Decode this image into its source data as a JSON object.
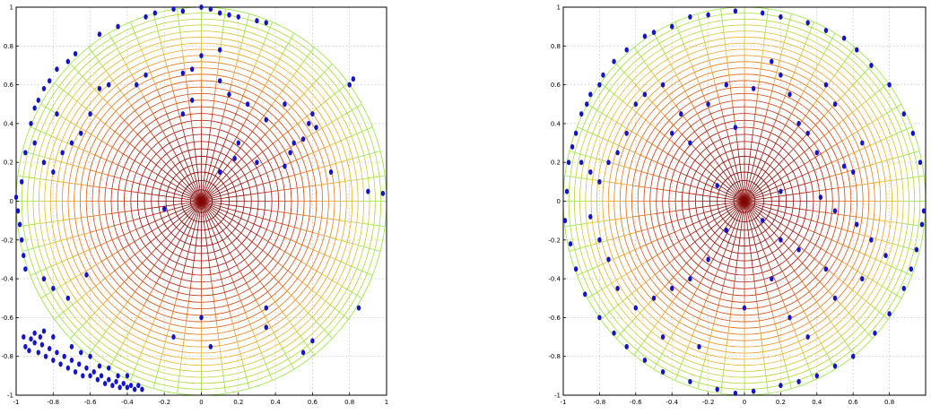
{
  "chart_data": [
    {
      "type": "scatter",
      "title": "",
      "xlabel": "",
      "ylabel": "",
      "xlim": [
        -1,
        1
      ],
      "ylim": [
        -1,
        1
      ],
      "xticks": [
        -1,
        -0.8,
        -0.6,
        -0.4,
        -0.2,
        0,
        0.2,
        0.4,
        0.6,
        0.8,
        1
      ],
      "yticks": [
        -1,
        -0.8,
        -0.6,
        -0.4,
        -0.2,
        0,
        0.2,
        0.4,
        0.6,
        0.8,
        1
      ],
      "xtick_labels": [
        "-1",
        "-0.8",
        "-0.6",
        "-0.4",
        "-0.2",
        "0",
        "0.2",
        "0.4",
        "0.6",
        "0.8",
        "1"
      ],
      "ytick_labels": [
        "-1",
        "-0.8",
        "-0.6",
        "-0.4",
        "-0.2",
        "0",
        "0.2",
        "0.4",
        "0.6",
        "0.8",
        "1"
      ],
      "grid": true,
      "polar_mesh": {
        "rings": 28,
        "spokes": 48,
        "colormap": "dark-red center to yellow-green rim"
      },
      "point_color": "#1414c8",
      "points": [
        [
          -0.95,
          -0.75
        ],
        [
          -0.93,
          -0.77
        ],
        [
          -0.9,
          -0.73
        ],
        [
          -0.88,
          -0.78
        ],
        [
          -0.86,
          -0.74
        ],
        [
          -0.84,
          -0.8
        ],
        [
          -0.82,
          -0.76
        ],
        [
          -0.8,
          -0.82
        ],
        [
          -0.78,
          -0.78
        ],
        [
          -0.76,
          -0.84
        ],
        [
          -0.74,
          -0.8
        ],
        [
          -0.72,
          -0.86
        ],
        [
          -0.7,
          -0.82
        ],
        [
          -0.68,
          -0.88
        ],
        [
          -0.66,
          -0.84
        ],
        [
          -0.64,
          -0.9
        ],
        [
          -0.62,
          -0.86
        ],
        [
          -0.6,
          -0.9
        ],
        [
          -0.58,
          -0.88
        ],
        [
          -0.56,
          -0.92
        ],
        [
          -0.54,
          -0.9
        ],
        [
          -0.52,
          -0.94
        ],
        [
          -0.5,
          -0.92
        ],
        [
          -0.48,
          -0.95
        ],
        [
          -0.46,
          -0.93
        ],
        [
          -0.44,
          -0.96
        ],
        [
          -0.42,
          -0.94
        ],
        [
          -0.4,
          -0.96
        ],
        [
          -0.38,
          -0.95
        ],
        [
          -0.36,
          -0.97
        ],
        [
          -0.34,
          -0.95
        ],
        [
          -0.32,
          -0.97
        ],
        [
          -0.96,
          -0.7
        ],
        [
          -0.92,
          -0.71
        ],
        [
          -0.9,
          -0.68
        ],
        [
          -0.87,
          -0.7
        ],
        [
          -0.85,
          -0.67
        ],
        [
          -0.8,
          -0.7
        ],
        [
          -0.7,
          -0.75
        ],
        [
          -0.65,
          -0.78
        ],
        [
          -0.6,
          -0.8
        ],
        [
          -0.55,
          -0.85
        ],
        [
          -0.5,
          -0.86
        ],
        [
          -0.45,
          -0.9
        ],
        [
          -0.4,
          -0.9
        ],
        [
          -1.0,
          0.02
        ],
        [
          -0.99,
          -0.05
        ],
        [
          -0.98,
          -0.12
        ],
        [
          -0.97,
          -0.2
        ],
        [
          -0.96,
          -0.28
        ],
        [
          -0.95,
          -0.35
        ],
        [
          -0.97,
          0.1
        ],
        [
          -0.95,
          0.25
        ],
        [
          -0.92,
          0.4
        ],
        [
          -0.9,
          0.48
        ],
        [
          -0.88,
          0.52
        ],
        [
          -0.85,
          0.58
        ],
        [
          -0.82,
          0.62
        ],
        [
          -0.78,
          0.68
        ],
        [
          -0.72,
          0.72
        ],
        [
          -0.68,
          0.76
        ],
        [
          -0.55,
          0.86
        ],
        [
          -0.45,
          0.9
        ],
        [
          -0.3,
          0.95
        ],
        [
          -0.25,
          0.97
        ],
        [
          -0.15,
          0.99
        ],
        [
          -0.1,
          0.98
        ],
        [
          0.0,
          1.0
        ],
        [
          0.05,
          0.99
        ],
        [
          0.1,
          0.97
        ],
        [
          0.15,
          0.96
        ],
        [
          0.2,
          0.95
        ],
        [
          0.3,
          0.93
        ],
        [
          0.35,
          0.92
        ],
        [
          0.8,
          0.6
        ],
        [
          0.82,
          0.63
        ],
        [
          0.9,
          0.05
        ],
        [
          0.98,
          0.04
        ],
        [
          0.85,
          -0.55
        ],
        [
          -0.9,
          0.3
        ],
        [
          -0.85,
          0.2
        ],
        [
          -0.8,
          0.15
        ],
        [
          -0.75,
          0.25
        ],
        [
          -0.7,
          0.3
        ],
        [
          -0.65,
          0.35
        ],
        [
          -0.6,
          0.45
        ],
        [
          -0.78,
          0.45
        ],
        [
          -0.72,
          -0.5
        ],
        [
          -0.8,
          -0.45
        ],
        [
          -0.85,
          -0.4
        ],
        [
          -0.62,
          -0.38
        ],
        [
          -0.55,
          0.58
        ],
        [
          -0.5,
          0.6
        ],
        [
          -0.35,
          0.6
        ],
        [
          -0.3,
          0.65
        ],
        [
          -0.1,
          0.66
        ],
        [
          -0.05,
          0.68
        ],
        [
          0.1,
          0.62
        ],
        [
          0.15,
          0.55
        ],
        [
          0.25,
          0.5
        ],
        [
          0.35,
          0.42
        ],
        [
          0.45,
          0.5
        ],
        [
          0.5,
          0.3
        ],
        [
          0.55,
          0.32
        ],
        [
          0.6,
          0.45
        ],
        [
          0.58,
          0.4
        ],
        [
          0.62,
          0.38
        ],
        [
          0.2,
          0.3
        ],
        [
          0.18,
          0.22
        ],
        [
          -0.1,
          0.45
        ],
        [
          -0.05,
          0.52
        ],
        [
          0.0,
          0.75
        ],
        [
          0.1,
          0.78
        ],
        [
          0.3,
          0.2
        ],
        [
          0.45,
          0.18
        ],
        [
          0.48,
          0.25
        ],
        [
          0.7,
          0.15
        ],
        [
          0.1,
          0.15
        ],
        [
          -0.2,
          -0.04
        ],
        [
          0.0,
          -0.6
        ],
        [
          0.05,
          -0.75
        ],
        [
          -0.15,
          -0.7
        ],
        [
          0.35,
          -0.55
        ],
        [
          0.35,
          -0.65
        ],
        [
          0.6,
          -0.72
        ],
        [
          0.55,
          -0.78
        ]
      ],
      "points_unrecorded_estimate": "positions estimated from image"
    },
    {
      "type": "scatter",
      "title": "",
      "xlabel": "",
      "ylabel": "",
      "xlim": [
        -1,
        1
      ],
      "ylim": [
        -1,
        1
      ],
      "xticks": [
        -1,
        -0.8,
        -0.6,
        -0.4,
        -0.2,
        0,
        0.2,
        0.4,
        0.6,
        0.8
      ],
      "yticks": [
        -1,
        -0.8,
        -0.6,
        -0.4,
        -0.2,
        0,
        0.2,
        0.4,
        0.6,
        0.8,
        1
      ],
      "xtick_labels": [
        "-1",
        "-0.8",
        "-0.6",
        "-0.4",
        "-0.2",
        "0",
        "0.2",
        "0.4",
        "0.6",
        "0.8"
      ],
      "ytick_labels": [
        "-1",
        "-0.8",
        "-0.6",
        "-0.4",
        "-0.2",
        "0",
        "0.2",
        "0.4",
        "0.6",
        "0.8",
        "1"
      ],
      "grid": true,
      "polar_mesh": {
        "rings": 28,
        "spokes": 48,
        "colormap": "dark-red center to yellow-green rim"
      },
      "point_color": "#1414c8",
      "points": [
        [
          -0.98,
          0.05
        ],
        [
          -0.97,
          0.2
        ],
        [
          -0.95,
          0.28
        ],
        [
          -0.93,
          0.35
        ],
        [
          -0.9,
          0.45
        ],
        [
          -0.87,
          0.5
        ],
        [
          -0.85,
          0.55
        ],
        [
          -0.8,
          0.6
        ],
        [
          -0.78,
          0.65
        ],
        [
          -0.72,
          0.72
        ],
        [
          -0.65,
          0.78
        ],
        [
          -0.55,
          0.85
        ],
        [
          -0.5,
          0.87
        ],
        [
          -0.4,
          0.9
        ],
        [
          -0.3,
          0.95
        ],
        [
          -0.2,
          0.96
        ],
        [
          -0.05,
          0.98
        ],
        [
          0.1,
          0.97
        ],
        [
          0.2,
          0.95
        ],
        [
          0.35,
          0.92
        ],
        [
          0.45,
          0.88
        ],
        [
          0.55,
          0.84
        ],
        [
          0.62,
          0.78
        ],
        [
          0.7,
          0.7
        ],
        [
          0.8,
          0.6
        ],
        [
          0.88,
          0.45
        ],
        [
          0.93,
          0.35
        ],
        [
          0.97,
          0.2
        ],
        [
          0.99,
          -0.05
        ],
        [
          0.98,
          -0.12
        ],
        [
          0.95,
          -0.25
        ],
        [
          0.92,
          -0.35
        ],
        [
          0.88,
          -0.45
        ],
        [
          0.8,
          -0.58
        ],
        [
          0.72,
          -0.68
        ],
        [
          0.6,
          -0.8
        ],
        [
          0.5,
          -0.85
        ],
        [
          0.4,
          -0.9
        ],
        [
          0.3,
          -0.93
        ],
        [
          0.2,
          -0.95
        ],
        [
          0.05,
          -0.98
        ],
        [
          -0.05,
          -0.99
        ],
        [
          -0.15,
          -0.97
        ],
        [
          -0.3,
          -0.93
        ],
        [
          -0.45,
          -0.88
        ],
        [
          -0.55,
          -0.82
        ],
        [
          -0.65,
          -0.75
        ],
        [
          -0.72,
          -0.68
        ],
        [
          -0.8,
          -0.6
        ],
        [
          -0.88,
          -0.48
        ],
        [
          -0.93,
          -0.35
        ],
        [
          -0.96,
          -0.22
        ],
        [
          -0.99,
          -0.1
        ],
        [
          -0.9,
          0.2
        ],
        [
          -0.85,
          0.15
        ],
        [
          -0.8,
          0.1
        ],
        [
          -0.75,
          0.2
        ],
        [
          -0.7,
          0.25
        ],
        [
          -0.65,
          0.35
        ],
        [
          -0.6,
          0.5
        ],
        [
          -0.55,
          0.55
        ],
        [
          -0.45,
          0.6
        ],
        [
          -0.4,
          0.35
        ],
        [
          -0.35,
          0.45
        ],
        [
          -0.3,
          0.3
        ],
        [
          -0.2,
          0.5
        ],
        [
          -0.1,
          0.6
        ],
        [
          -0.05,
          0.38
        ],
        [
          0.05,
          0.58
        ],
        [
          0.15,
          0.72
        ],
        [
          0.2,
          0.65
        ],
        [
          0.25,
          0.55
        ],
        [
          0.3,
          0.4
        ],
        [
          0.35,
          0.35
        ],
        [
          0.4,
          0.25
        ],
        [
          0.45,
          0.6
        ],
        [
          0.5,
          0.5
        ],
        [
          0.55,
          0.18
        ],
        [
          0.6,
          0.15
        ],
        [
          0.65,
          0.3
        ],
        [
          0.42,
          0.02
        ],
        [
          0.5,
          -0.05
        ],
        [
          0.62,
          -0.12
        ],
        [
          0.7,
          -0.2
        ],
        [
          0.78,
          -0.28
        ],
        [
          0.65,
          -0.4
        ],
        [
          0.5,
          -0.5
        ],
        [
          0.45,
          -0.35
        ],
        [
          0.3,
          -0.25
        ],
        [
          0.2,
          -0.2
        ],
        [
          0.1,
          -0.1
        ],
        [
          -0.1,
          -0.15
        ],
        [
          -0.2,
          -0.3
        ],
        [
          -0.3,
          -0.4
        ],
        [
          -0.4,
          -0.45
        ],
        [
          -0.5,
          -0.5
        ],
        [
          -0.6,
          -0.55
        ],
        [
          -0.7,
          -0.45
        ],
        [
          -0.75,
          -0.3
        ],
        [
          -0.8,
          -0.2
        ],
        [
          -0.85,
          -0.08
        ],
        [
          0.0,
          -0.55
        ],
        [
          0.15,
          -0.4
        ],
        [
          0.25,
          -0.6
        ],
        [
          0.35,
          -0.7
        ],
        [
          -0.25,
          -0.75
        ],
        [
          -0.45,
          -0.7
        ],
        [
          0.2,
          0.05
        ],
        [
          -0.15,
          0.08
        ]
      ],
      "points_unrecorded_estimate": "positions estimated from image"
    }
  ]
}
